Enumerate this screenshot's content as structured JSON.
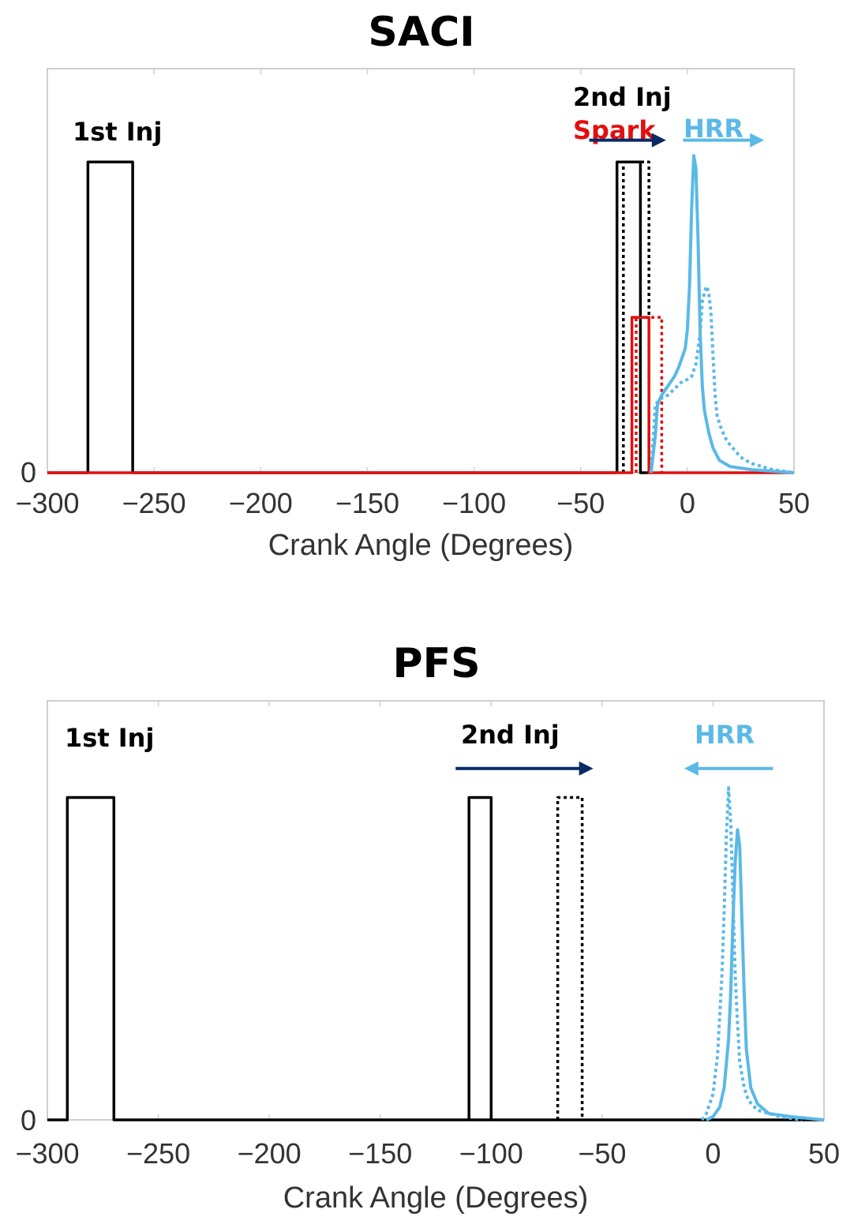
{
  "chart_data": [
    {
      "type": "line",
      "title": "SACI",
      "xlabel": "Crank Angle (Degrees)",
      "ylabel": "",
      "xlim": [
        -300,
        50
      ],
      "ylim": [
        0,
        1.3
      ],
      "xticks": [
        -300,
        -250,
        -200,
        -150,
        -100,
        -50,
        0,
        50
      ],
      "xtick_labels": [
        "−300",
        "−250",
        "−200",
        "−150",
        "−100",
        "−50",
        "0",
        "50"
      ],
      "ytick_labels": [
        "0"
      ],
      "colors": {
        "injection": "#000000",
        "spark": "#e01010",
        "hrr": "#5ab9e6",
        "arrow_inj": "#0a2a66"
      },
      "annotations": [
        {
          "key": "inj1",
          "text": "1st Inj",
          "color": "#000000"
        },
        {
          "key": "inj2",
          "text": "2nd Inj",
          "color": "#000000"
        },
        {
          "key": "spark",
          "text": "Spark",
          "color": "#e01010"
        },
        {
          "key": "hrr",
          "text": "HRR",
          "color": "#5ab9e6"
        }
      ],
      "arrows": [
        {
          "color": "#0a2a66",
          "from": -46,
          "to": -10,
          "y": 1.07
        },
        {
          "color": "#5ab9e6",
          "from": -2,
          "to": 36,
          "y": 1.07
        }
      ],
      "series": [
        {
          "name": "1st Injection",
          "style": "solid",
          "color": "#000000",
          "x": [
            -300,
            -281,
            -281,
            -260,
            -260,
            -33
          ],
          "y": [
            0,
            0,
            1.0,
            1.0,
            0,
            0
          ]
        },
        {
          "name": "2nd Injection (early)",
          "style": "solid",
          "color": "#000000",
          "x": [
            -33,
            -33,
            -22,
            -22,
            -18
          ],
          "y": [
            0,
            1.0,
            1.0,
            0,
            0
          ]
        },
        {
          "name": "2nd Injection (late)",
          "style": "dotted",
          "color": "#000000",
          "x": [
            -30,
            -30,
            -18,
            -18
          ],
          "y": [
            0,
            1.0,
            1.0,
            0
          ]
        },
        {
          "name": "Spark (early)",
          "style": "solid",
          "color": "#e01010",
          "x": [
            -300,
            -26,
            -26,
            -18,
            -18,
            50
          ],
          "y": [
            0,
            0,
            0.5,
            0.5,
            0,
            0
          ]
        },
        {
          "name": "Spark (late)",
          "style": "dotted",
          "color": "#e01010",
          "x": [
            -24,
            -24,
            -12,
            -12
          ],
          "y": [
            0,
            0.5,
            0.5,
            0
          ]
        },
        {
          "name": "HRR (early)",
          "style": "solid",
          "color": "#5ab9e6",
          "x": [
            -17,
            -15,
            -14,
            -12,
            -10,
            -8,
            -6,
            -4,
            -3,
            -2,
            -1,
            0,
            1,
            2,
            3,
            4,
            5,
            6,
            7,
            8,
            10,
            12,
            15,
            20,
            30,
            50
          ],
          "y": [
            0,
            0.12,
            0.22,
            0.25,
            0.27,
            0.29,
            0.31,
            0.34,
            0.36,
            0.38,
            0.4,
            0.46,
            0.6,
            0.85,
            1.02,
            0.98,
            0.75,
            0.45,
            0.28,
            0.2,
            0.13,
            0.08,
            0.04,
            0.02,
            0.01,
            0
          ]
        },
        {
          "name": "HRR (late)",
          "style": "dotted",
          "color": "#5ab9e6",
          "x": [
            -17,
            -15,
            -12,
            -9,
            -6,
            -3,
            0,
            2,
            4,
            6,
            7,
            8,
            9,
            10,
            11,
            12,
            13,
            14,
            16,
            18,
            20,
            25,
            30,
            40,
            50
          ],
          "y": [
            0,
            0.22,
            0.24,
            0.25,
            0.27,
            0.29,
            0.3,
            0.31,
            0.35,
            0.45,
            0.55,
            0.58,
            0.6,
            0.58,
            0.52,
            0.38,
            0.25,
            0.18,
            0.14,
            0.11,
            0.09,
            0.05,
            0.03,
            0.01,
            0
          ]
        }
      ]
    },
    {
      "type": "line",
      "title": "PFS",
      "xlabel": "Crank Angle (Degrees)",
      "ylabel": "",
      "xlim": [
        -300,
        50
      ],
      "ylim": [
        0,
        1.3
      ],
      "xticks": [
        -300,
        -250,
        -200,
        -150,
        -100,
        -50,
        0,
        50
      ],
      "xtick_labels": [
        "−300",
        "−250",
        "−200",
        "−150",
        "−100",
        "−50",
        "0",
        "50"
      ],
      "ytick_labels": [
        "0"
      ],
      "colors": {
        "injection": "#000000",
        "hrr": "#5ab9e6",
        "arrow_inj": "#0a2a66"
      },
      "annotations": [
        {
          "key": "inj1",
          "text": "1st Inj",
          "color": "#000000"
        },
        {
          "key": "inj2",
          "text": "2nd Inj",
          "color": "#000000"
        },
        {
          "key": "hrr",
          "text": "HRR",
          "color": "#5ab9e6"
        }
      ],
      "arrows": [
        {
          "color": "#0a2a66",
          "from": -116,
          "to": -54,
          "y": 1.09
        },
        {
          "color": "#5ab9e6",
          "from": 27,
          "to": -13,
          "y": 1.09
        }
      ],
      "series": [
        {
          "name": "1st Injection + baseline",
          "style": "solid",
          "color": "#000000",
          "x": [
            -300,
            -291,
            -291,
            -270,
            -270,
            50
          ],
          "y": [
            0,
            0,
            1.0,
            1.0,
            0,
            0
          ]
        },
        {
          "name": "2nd Injection (early)",
          "style": "solid",
          "color": "#000000",
          "x": [
            -110,
            -110,
            -100,
            -100
          ],
          "y": [
            0,
            1.0,
            1.0,
            0
          ]
        },
        {
          "name": "2nd Injection (late)",
          "style": "dotted",
          "color": "#000000",
          "x": [
            -70,
            -70,
            -59,
            -59
          ],
          "y": [
            0,
            1.0,
            1.0,
            0
          ]
        },
        {
          "name": "HRR (early)",
          "style": "solid",
          "color": "#5ab9e6",
          "x": [
            -3,
            0,
            3,
            5,
            7,
            8,
            9,
            10,
            11,
            12,
            13,
            14,
            15,
            17,
            20,
            25,
            35,
            50
          ],
          "y": [
            0,
            0.01,
            0.04,
            0.1,
            0.25,
            0.4,
            0.62,
            0.8,
            0.9,
            0.85,
            0.62,
            0.4,
            0.22,
            0.1,
            0.05,
            0.02,
            0.01,
            0
          ]
        },
        {
          "name": "HRR (late)",
          "style": "dotted",
          "color": "#5ab9e6",
          "x": [
            -5,
            -3,
            0,
            2,
            4,
            5,
            6,
            7,
            8,
            9,
            10,
            11,
            12,
            14,
            16,
            20,
            25,
            30,
            40
          ],
          "y": [
            0,
            0.02,
            0.08,
            0.2,
            0.45,
            0.65,
            0.88,
            1.03,
            0.92,
            0.68,
            0.45,
            0.3,
            0.18,
            0.1,
            0.06,
            0.03,
            0.02,
            0.01,
            0
          ]
        }
      ]
    }
  ]
}
